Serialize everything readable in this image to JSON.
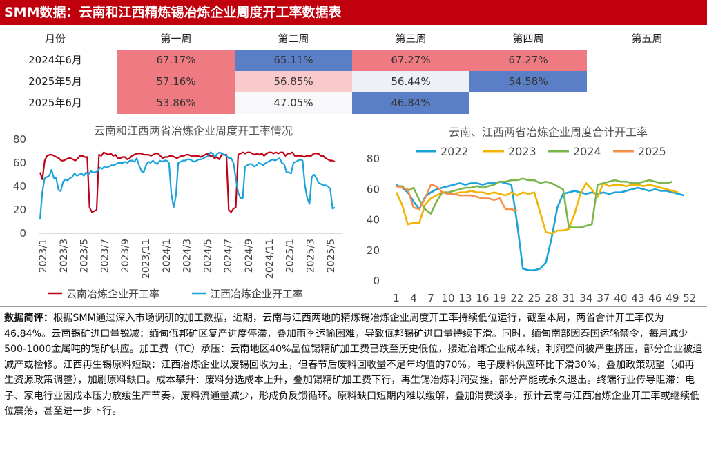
{
  "title": "SMM数据：云南和江西精炼锡冶炼企业周度开工率数据表",
  "table": {
    "header": [
      "月份",
      "第一周",
      "第二周",
      "第三周",
      "第四周",
      "第五周"
    ],
    "rows": [
      {
        "label": "2024年6月",
        "cells": [
          {
            "value": "67.17%",
            "color": "#f07a82"
          },
          {
            "value": "65.11%",
            "color": "#5b7fc7"
          },
          {
            "value": "67.27%",
            "color": "#f07a82"
          },
          {
            "value": "67.27%",
            "color": "#f07a82"
          },
          {
            "value": "",
            "color": ""
          }
        ]
      },
      {
        "label": "2025年5月",
        "cells": [
          {
            "value": "57.16%",
            "color": "#f07a82"
          },
          {
            "value": "56.85%",
            "color": "#f9c9cc"
          },
          {
            "value": "56.44%",
            "color": "#eef0f8"
          },
          {
            "value": "54.58%",
            "color": "#5b7fc7"
          },
          {
            "value": "",
            "color": ""
          }
        ]
      },
      {
        "label": "2025年6月",
        "cells": [
          {
            "value": "53.86%",
            "color": "#f07a82"
          },
          {
            "value": "47.05%",
            "color": "#f8f8fb"
          },
          {
            "value": "46.84%",
            "color": "#5b7fc7"
          },
          {
            "value": "",
            "color": ""
          },
          {
            "value": "",
            "color": ""
          }
        ]
      }
    ]
  },
  "chart_data": [
    {
      "type": "line",
      "title": "云南和江西两省冶炼企业周度开工率情况",
      "x_ticks": [
        "2023/1",
        "2023/3",
        "2023/5",
        "2023/7",
        "2023/9",
        "2023/11",
        "2024/1",
        "2024/3",
        "2024/5",
        "2024/7",
        "2024/9",
        "2024/11",
        "2025/1",
        "2025/3",
        "2025/5"
      ],
      "ylim": [
        0,
        80
      ],
      "y_ticks": [
        0,
        20,
        40,
        60,
        80
      ],
      "legend_position": "bottom",
      "series": [
        {
          "name": "云南冶炼企业开工率",
          "color": "#c00016",
          "x_range": [
            "2023/1",
            "2025/6"
          ],
          "values": [
            52,
            46,
            62,
            66,
            67,
            67,
            66,
            65,
            64,
            62,
            62,
            63,
            64,
            64,
            63,
            62,
            64,
            66,
            66,
            65,
            65,
            22,
            18,
            19,
            20,
            67,
            66,
            69,
            68,
            67,
            68,
            66,
            67,
            64,
            64,
            65,
            65,
            63,
            64,
            66,
            67,
            68,
            68,
            68,
            67,
            67,
            67,
            66,
            67,
            68,
            68,
            66,
            64,
            65,
            65,
            66,
            66,
            65,
            64,
            65,
            66,
            66,
            67,
            67,
            66,
            66,
            66,
            66,
            65,
            66,
            67,
            68,
            66,
            66,
            64,
            65,
            63,
            67,
            67,
            67,
            20,
            18,
            21,
            22,
            67,
            68,
            69,
            68,
            69,
            69,
            68,
            67,
            68,
            67,
            68,
            66,
            68,
            69,
            69,
            68,
            69,
            68,
            69,
            69,
            66,
            68,
            68,
            69,
            66,
            66,
            66,
            66,
            65,
            66,
            66,
            66,
            68,
            68,
            68,
            66,
            66,
            64,
            63,
            62,
            62,
            61
          ]
        },
        {
          "name": "江西冶炼企业开工率",
          "color": "#1aa3da",
          "x_range": [
            "2023/1",
            "2025/6"
          ],
          "values": [
            12,
            35,
            47,
            48,
            49,
            54,
            47,
            47,
            37,
            36,
            44,
            46,
            45,
            47,
            48,
            51,
            49,
            50,
            51,
            49,
            52,
            50,
            53,
            52,
            52,
            53,
            56,
            55,
            57,
            56,
            57,
            58,
            58,
            59,
            60,
            60,
            60,
            61,
            60,
            62,
            62,
            61,
            64,
            58,
            53,
            52,
            58,
            61,
            60,
            62,
            60,
            59,
            62,
            61,
            62,
            62,
            60,
            34,
            22,
            32,
            60,
            61,
            62,
            62,
            63,
            63,
            62,
            61,
            62,
            63,
            63,
            64,
            65,
            66,
            69,
            68,
            65,
            68,
            69,
            68,
            67,
            66,
            64,
            64,
            60,
            46,
            35,
            30,
            30,
            57,
            58,
            59,
            59,
            57,
            58,
            60,
            59,
            58,
            60,
            61,
            62,
            63,
            62,
            63,
            64,
            60,
            59,
            52,
            52,
            51,
            60,
            61,
            62,
            63,
            62,
            41,
            30,
            25,
            48,
            50,
            47,
            43,
            42,
            41,
            41,
            40,
            38,
            21,
            22
          ]
        }
      ]
    },
    {
      "type": "line",
      "title": "云南、江西两省冶炼企业周度合计开工率",
      "x_ticks": [
        "1",
        "4",
        "7",
        "10",
        "13",
        "16",
        "19",
        "22",
        "25",
        "28",
        "31",
        "34",
        "37",
        "40",
        "43",
        "46",
        "49",
        "52"
      ],
      "ylim": [
        0,
        80
      ],
      "y_ticks": [
        0,
        20,
        40,
        60,
        80
      ],
      "legend_position": "top",
      "series": [
        {
          "name": "2022",
          "color": "#1aa3da",
          "values": [
            63,
            61,
            58,
            52,
            47,
            55,
            58,
            60,
            61,
            62,
            63,
            64,
            63,
            64,
            64,
            63,
            64,
            64,
            65,
            64,
            63,
            38,
            8,
            7,
            7,
            8,
            12,
            28,
            48,
            57,
            58,
            59,
            58,
            57,
            58,
            57,
            58,
            57,
            58,
            58,
            59,
            60,
            61,
            60,
            59,
            60,
            59,
            59,
            58,
            57,
            56
          ]
        },
        {
          "name": "2023",
          "color": "#f0b400",
          "values": [
            58,
            50,
            37,
            38,
            38,
            50,
            54,
            56,
            58,
            58,
            57,
            58,
            58,
            59,
            58,
            58,
            57,
            58,
            57,
            56,
            58,
            56,
            58,
            57,
            58,
            45,
            32,
            31,
            33,
            33,
            34,
            44,
            57,
            64,
            60,
            55,
            64,
            62,
            63,
            63,
            62,
            63,
            63,
            62,
            63,
            62,
            61,
            60,
            59,
            58
          ]
        },
        {
          "name": "2024",
          "color": "#7ab648",
          "values": [
            62,
            62,
            59,
            61,
            53,
            47,
            44,
            52,
            58,
            58,
            59,
            60,
            61,
            61,
            62,
            61,
            62,
            63,
            65,
            65,
            66,
            66,
            67,
            66,
            66,
            64,
            65,
            64,
            62,
            60,
            35,
            35,
            35,
            36,
            37,
            63,
            64,
            65,
            66,
            65,
            65,
            64,
            64,
            65,
            66,
            65,
            64,
            64,
            65
          ]
        },
        {
          "name": "2025",
          "color": "#f4914a",
          "values": [
            62,
            61,
            60,
            48,
            47,
            54,
            63,
            62,
            58,
            57,
            57,
            56,
            56,
            56,
            55,
            54,
            54,
            53,
            54,
            47,
            47,
            46
          ]
        }
      ]
    }
  ],
  "notes": {
    "label": "数据简评：",
    "text": "根据SMM通过深入市场调研的加工数据，近期，云南与江西两地的精炼锡冶炼企业周度开工率持续低位运行，截至本周，两省合计开工率仅为46.84%。云南锡矿进口量锐减：缅甸佤邦矿区复产进度停滞，叠加雨季运输困难，导致佤邦锡矿进口量持续下滑。同时，缅甸南部因泰国运输禁令，每月减少500-1000金属吨的锡矿供应。加工费（TC）承压：云南地区40%品位锡精矿加工费已跌至历史低位，接近冶炼企业成本线，利润空间被严重挤压，部分企业被迫减产或检修。江西再生锡原料短缺：江西冶炼企业以废锡回收为主，但春节后废料回收量不足年均值的70%，电子废料供应环比下滑30%，叠加政策观望（如再生资源政策调整），加剧原料缺口。成本攀升：废料分选成本上升，叠加锡精矿加工费下行，再生锡冶炼利润受挫，部分产能或永久退出。终端行业传导阻滞：电子、家电行业因成本压力放缓生产节奏，废料流通量减少，形成负反馈循环。原料缺口短期内难以缓解，叠加消费淡季，预计云南与江西冶炼企业开工率或继续低位震荡，甚至进一步下行。"
  }
}
